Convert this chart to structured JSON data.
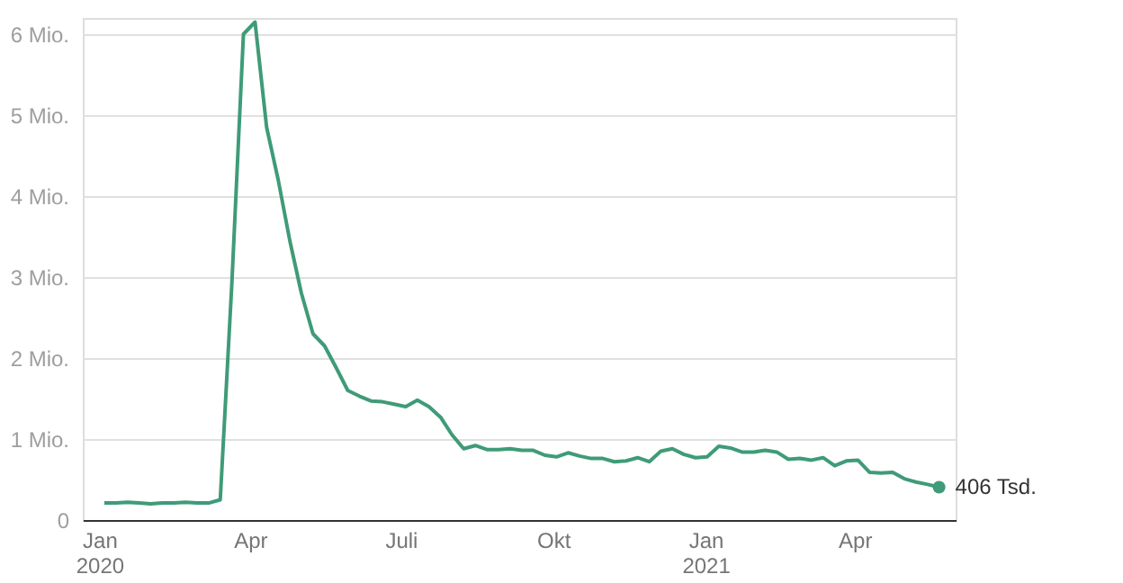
{
  "chart_data": {
    "type": "line",
    "x": [
      "2020-01-04",
      "2020-01-11",
      "2020-01-18",
      "2020-01-25",
      "2020-02-01",
      "2020-02-08",
      "2020-02-15",
      "2020-02-22",
      "2020-02-29",
      "2020-03-07",
      "2020-03-14",
      "2020-03-21",
      "2020-03-28",
      "2020-04-04",
      "2020-04-11",
      "2020-04-18",
      "2020-04-25",
      "2020-05-02",
      "2020-05-09",
      "2020-05-16",
      "2020-05-23",
      "2020-05-30",
      "2020-06-06",
      "2020-06-13",
      "2020-06-20",
      "2020-06-27",
      "2020-07-04",
      "2020-07-11",
      "2020-07-18",
      "2020-07-25",
      "2020-08-01",
      "2020-08-08",
      "2020-08-15",
      "2020-08-22",
      "2020-08-29",
      "2020-09-05",
      "2020-09-12",
      "2020-09-19",
      "2020-09-26",
      "2020-10-03",
      "2020-10-10",
      "2020-10-17",
      "2020-10-24",
      "2020-10-31",
      "2020-11-07",
      "2020-11-14",
      "2020-11-21",
      "2020-11-28",
      "2020-12-05",
      "2020-12-12",
      "2020-12-19",
      "2020-12-26",
      "2021-01-02",
      "2021-01-09",
      "2021-01-16",
      "2021-01-23",
      "2021-01-30",
      "2021-02-06",
      "2021-02-13",
      "2021-02-20",
      "2021-02-27",
      "2021-03-06",
      "2021-03-13",
      "2021-03-20",
      "2021-03-27",
      "2021-04-03",
      "2021-04-10",
      "2021-04-17",
      "2021-04-24",
      "2021-05-01",
      "2021-05-08",
      "2021-05-15",
      "2021-05-22"
    ],
    "series": [
      {
        "color": "#3f9b78",
        "values": [
          0.21,
          0.21,
          0.22,
          0.21,
          0.2,
          0.21,
          0.21,
          0.22,
          0.21,
          0.21,
          0.25,
          2.92,
          6.0,
          6.15,
          4.85,
          4.2,
          3.45,
          2.8,
          2.3,
          2.15,
          1.88,
          1.6,
          1.53,
          1.47,
          1.46,
          1.43,
          1.4,
          1.48,
          1.4,
          1.27,
          1.05,
          0.88,
          0.92,
          0.87,
          0.87,
          0.88,
          0.86,
          0.86,
          0.8,
          0.78,
          0.83,
          0.79,
          0.76,
          0.76,
          0.72,
          0.73,
          0.77,
          0.72,
          0.85,
          0.88,
          0.81,
          0.77,
          0.78,
          0.91,
          0.89,
          0.84,
          0.84,
          0.86,
          0.84,
          0.75,
          0.76,
          0.74,
          0.77,
          0.67,
          0.73,
          0.74,
          0.59,
          0.58,
          0.59,
          0.51,
          0.47,
          0.44,
          0.406
        ]
      }
    ],
    "xlim": [
      "2019-12-22",
      "2021-06-01"
    ],
    "xticks": [
      {
        "value": "2020-01-01",
        "label": "Jan\n2020"
      },
      {
        "value": "2020-04-01",
        "label": "Apr"
      },
      {
        "value": "2020-07-01",
        "label": "Juli"
      },
      {
        "value": "2020-10-01",
        "label": "Okt"
      },
      {
        "value": "2021-01-01",
        "label": "Jan\n2021"
      },
      {
        "value": "2021-04-01",
        "label": "Apr"
      }
    ],
    "ylim": [
      0,
      6.2
    ],
    "yticks": [
      {
        "value": 0,
        "label": "0"
      },
      {
        "value": 1,
        "label": "1 Mio."
      },
      {
        "value": 2,
        "label": "2 Mio."
      },
      {
        "value": 3,
        "label": "3 Mio."
      },
      {
        "value": 4,
        "label": "4 Mio."
      },
      {
        "value": 5,
        "label": "5 Mio."
      },
      {
        "value": 6,
        "label": "6 Mio."
      }
    ],
    "grid": "y",
    "annotations": [
      {
        "text": "406 Tsd.",
        "x": "2021-05-22",
        "y": 0.406
      }
    ]
  }
}
